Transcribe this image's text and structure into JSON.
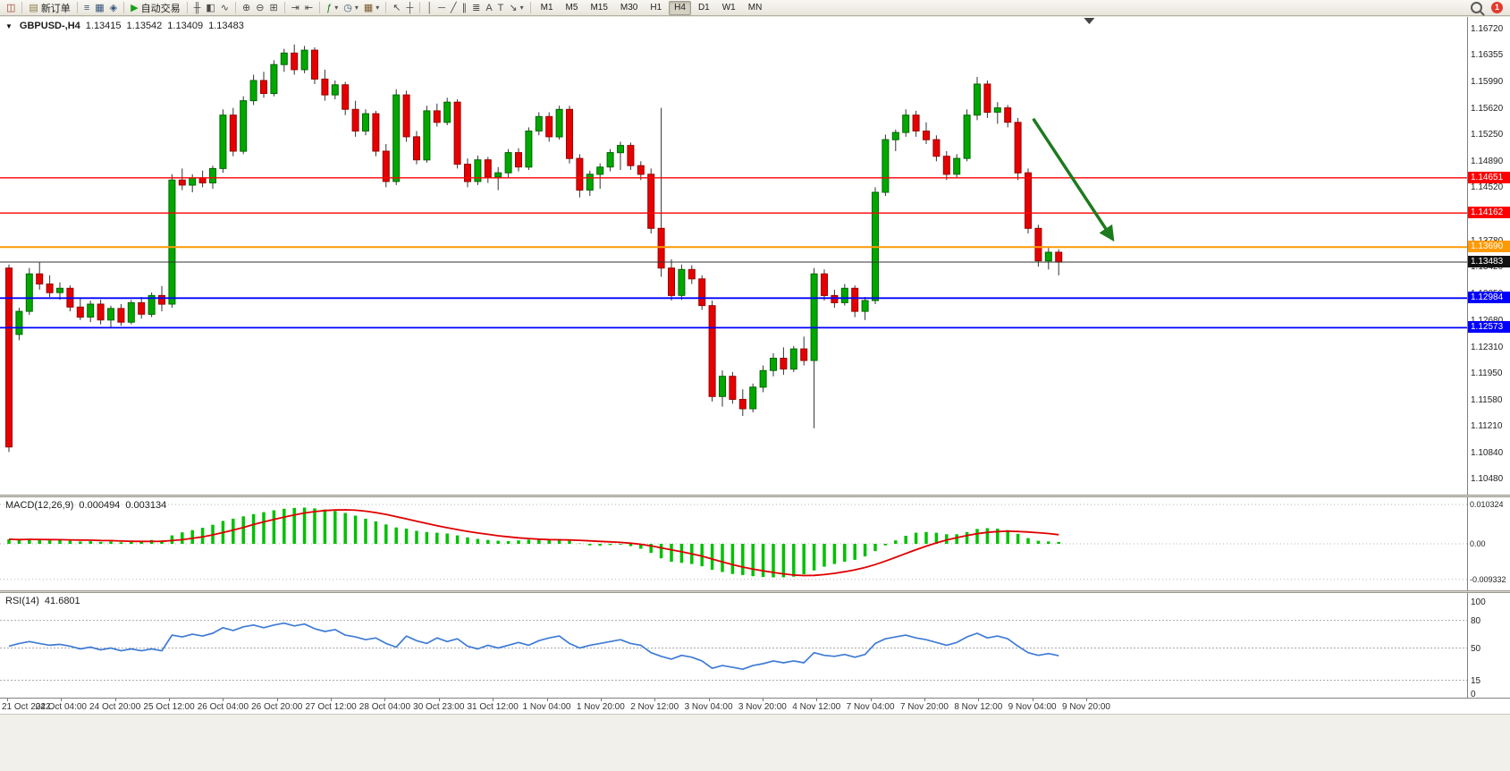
{
  "ui": {
    "symbol_caret": "▼",
    "caret_down": "▾"
  },
  "toolbar": {
    "groups": [
      {
        "items": [
          {
            "name": "new-chart-button",
            "glyph": "◫",
            "color": "#a03828"
          }
        ]
      },
      {
        "items": [
          {
            "name": "new-order-button",
            "glyph": "▤",
            "color": "#8a7a4a",
            "label": "新订单"
          }
        ]
      },
      {
        "items": [
          {
            "name": "market-watch-icon",
            "glyph": "≡",
            "color": "#33527a"
          },
          {
            "name": "data-window-icon",
            "glyph": "▦",
            "color": "#33527a"
          },
          {
            "name": "navigator-icon",
            "glyph": "◈",
            "color": "#33527a"
          }
        ]
      },
      {
        "items": [
          {
            "name": "autotrading-button",
            "glyph": "▶",
            "color": "#18a018",
            "label": "自动交易"
          }
        ]
      },
      {
        "items": [
          {
            "name": "bar-chart-icon",
            "glyph": "╫"
          },
          {
            "name": "candlestick-chart-icon",
            "glyph": "◧"
          },
          {
            "name": "line-chart-icon",
            "glyph": "∿"
          }
        ]
      },
      {
        "items": [
          {
            "name": "zoom-in-icon",
            "glyph": "⊕"
          },
          {
            "name": "zoom-out-icon",
            "glyph": "⊖"
          },
          {
            "name": "tile-windows-icon",
            "glyph": "⊞"
          }
        ]
      },
      {
        "items": [
          {
            "name": "auto-scroll-icon",
            "glyph": "⇥"
          },
          {
            "name": "chart-shift-icon",
            "glyph": "⇤"
          }
        ]
      },
      {
        "items": [
          {
            "name": "indicators-button",
            "glyph": "ƒ",
            "color": "#1a7a1a",
            "caret": true
          },
          {
            "name": "periods-button",
            "glyph": "◷",
            "color": "#33527a",
            "caret": true
          },
          {
            "name": "templates-button",
            "glyph": "▦",
            "color": "#7a5a2a",
            "caret": true
          }
        ]
      },
      {
        "items": [
          {
            "name": "cursor-icon",
            "glyph": "↖"
          },
          {
            "name": "crosshair-icon",
            "glyph": "┼"
          }
        ]
      },
      {
        "items": [
          {
            "name": "vertical-line-icon",
            "glyph": "│"
          },
          {
            "name": "horizontal-line-icon",
            "glyph": "─"
          },
          {
            "name": "trendline-icon",
            "glyph": "╱"
          },
          {
            "name": "channel-icon",
            "glyph": "∥"
          },
          {
            "name": "fibonacci-icon",
            "glyph": "≣"
          },
          {
            "name": "text-icon",
            "glyph": "A"
          },
          {
            "name": "label-icon",
            "glyph": "T"
          },
          {
            "name": "arrows-button",
            "glyph": "↘",
            "caret": true
          }
        ]
      }
    ],
    "timeframes": [
      "M1",
      "M5",
      "M15",
      "M30",
      "H1",
      "H4",
      "D1",
      "W1",
      "MN"
    ],
    "active_timeframe": "H4",
    "notification_count": "1"
  },
  "chart_data": [
    {
      "type": "candlestick",
      "symbol": "GBPUSD-,H4",
      "open": "1.13415",
      "high": "1.13542",
      "low": "1.13409",
      "close": "1.13483",
      "ylim": [
        1.1026,
        1.1688
      ],
      "yticks": [
        1.1672,
        1.16355,
        1.1599,
        1.1562,
        1.1525,
        1.1489,
        1.1452,
        1.1416,
        1.1378,
        1.1342,
        1.1305,
        1.1268,
        1.1231,
        1.1195,
        1.1158,
        1.1121,
        1.1084,
        1.1048
      ],
      "ytick_labels": [
        "1.16720",
        "1.16355",
        "1.15990",
        "1.15620",
        "1.15250",
        "1.14890",
        "1.14520",
        "1.14160",
        "1.13780",
        "1.13420",
        "1.13050",
        "1.12680",
        "1.12310",
        "1.11950",
        "1.11580",
        "1.11210",
        "1.10840",
        "1.10480"
      ],
      "xticklabels": [
        "21 Oct 2022",
        "24 Oct 04:00",
        "24 Oct 20:00",
        "25 Oct 12:00",
        "26 Oct 04:00",
        "26 Oct 20:00",
        "27 Oct 12:00",
        "28 Oct 04:00",
        "30 Oct 23:00",
        "31 Oct 12:00",
        "1 Nov 04:00",
        "1 Nov 20:00",
        "2 Nov 12:00",
        "3 Nov 04:00",
        "3 Nov 20:00",
        "4 Nov 12:00",
        "7 Nov 04:00",
        "7 Nov 20:00",
        "8 Nov 12:00",
        "9 Nov 04:00",
        "9 Nov 20:00"
      ],
      "levels": [
        {
          "label": "1.14651",
          "price": 1.14651,
          "color": "#FF0000",
          "width": 1.4
        },
        {
          "label": "1.14162",
          "price": 1.14162,
          "color": "#FF0000",
          "width": 1.4
        },
        {
          "label": "1.13690",
          "price": 1.1369,
          "color": "#FF9900",
          "width": 2
        },
        {
          "label": "1.12984",
          "price": 1.12984,
          "color": "#0000FF",
          "width": 1.8
        },
        {
          "label": "1.12573",
          "price": 1.12573,
          "color": "#0000FF",
          "width": 1.8
        }
      ],
      "bid": {
        "label": "1.13483",
        "price": 1.13483,
        "line_color": "#333333",
        "bg": "#111111"
      },
      "arrow": {
        "from": {
          "bar": 100.5,
          "price": 1.1547
        },
        "to": {
          "bar": 108.2,
          "price": 1.1382
        },
        "color": "#1E7A1E"
      },
      "shift_marker_bar": 106,
      "colors": {
        "up": "#00A800",
        "up_edge": "#006600",
        "down": "#E60000",
        "down_edge": "#990000",
        "wick": "#333333"
      },
      "ohlc": [
        [
          1.134,
          1.1345,
          1.1085,
          1.1092
        ],
        [
          1.1248,
          1.1285,
          1.124,
          1.128
        ],
        [
          1.128,
          1.134,
          1.1275,
          1.1332
        ],
        [
          1.1332,
          1.1348,
          1.131,
          1.1318
        ],
        [
          1.1318,
          1.133,
          1.13,
          1.1306
        ],
        [
          1.1306,
          1.132,
          1.1296,
          1.1312
        ],
        [
          1.1312,
          1.1316,
          1.128,
          1.1286
        ],
        [
          1.1286,
          1.1298,
          1.1268,
          1.1272
        ],
        [
          1.1272,
          1.1295,
          1.1265,
          1.129
        ],
        [
          1.129,
          1.1296,
          1.1262,
          1.1268
        ],
        [
          1.1268,
          1.1288,
          1.1258,
          1.1284
        ],
        [
          1.1284,
          1.129,
          1.126,
          1.1265
        ],
        [
          1.1265,
          1.1296,
          1.1262,
          1.1292
        ],
        [
          1.1292,
          1.13,
          1.127,
          1.1276
        ],
        [
          1.1276,
          1.1306,
          1.1272,
          1.1302
        ],
        [
          1.1302,
          1.1315,
          1.128,
          1.129
        ],
        [
          1.129,
          1.147,
          1.1285,
          1.1462
        ],
        [
          1.1462,
          1.1478,
          1.1448,
          1.1455
        ],
        [
          1.1455,
          1.147,
          1.1445,
          1.1465
        ],
        [
          1.1465,
          1.1475,
          1.1452,
          1.1458
        ],
        [
          1.1458,
          1.1482,
          1.145,
          1.1478
        ],
        [
          1.1478,
          1.156,
          1.1472,
          1.1552
        ],
        [
          1.1552,
          1.1562,
          1.1495,
          1.1502
        ],
        [
          1.1502,
          1.1578,
          1.1498,
          1.1572
        ],
        [
          1.1572,
          1.1608,
          1.1566,
          1.16
        ],
        [
          1.16,
          1.1612,
          1.1576,
          1.1582
        ],
        [
          1.1582,
          1.1628,
          1.1578,
          1.1622
        ],
        [
          1.1622,
          1.1644,
          1.1612,
          1.1638
        ],
        [
          1.1638,
          1.165,
          1.1608,
          1.1615
        ],
        [
          1.1615,
          1.1648,
          1.161,
          1.1642
        ],
        [
          1.1642,
          1.1646,
          1.1595,
          1.1602
        ],
        [
          1.1602,
          1.1615,
          1.1572,
          1.158
        ],
        [
          1.158,
          1.16,
          1.1574,
          1.1594
        ],
        [
          1.1594,
          1.1598,
          1.1552,
          1.156
        ],
        [
          1.156,
          1.1572,
          1.1522,
          1.153
        ],
        [
          1.153,
          1.156,
          1.1524,
          1.1554
        ],
        [
          1.1554,
          1.1558,
          1.1495,
          1.1502
        ],
        [
          1.1502,
          1.1512,
          1.1452,
          1.146
        ],
        [
          1.146,
          1.1588,
          1.1455,
          1.158
        ],
        [
          1.158,
          1.1586,
          1.1515,
          1.1522
        ],
        [
          1.1522,
          1.153,
          1.1484,
          1.149
        ],
        [
          1.149,
          1.1565,
          1.1486,
          1.1558
        ],
        [
          1.1558,
          1.1568,
          1.1536,
          1.1542
        ],
        [
          1.1542,
          1.1576,
          1.1538,
          1.157
        ],
        [
          1.157,
          1.1574,
          1.1478,
          1.1484
        ],
        [
          1.1484,
          1.1492,
          1.1452,
          1.146
        ],
        [
          1.146,
          1.1496,
          1.1455,
          1.149
        ],
        [
          1.149,
          1.1494,
          1.1458,
          1.1466
        ],
        [
          1.1466,
          1.148,
          1.1448,
          1.1472
        ],
        [
          1.1472,
          1.1505,
          1.1466,
          1.15
        ],
        [
          1.15,
          1.1506,
          1.1474,
          1.148
        ],
        [
          1.148,
          1.1535,
          1.1476,
          1.153
        ],
        [
          1.153,
          1.1556,
          1.1524,
          1.155
        ],
        [
          1.155,
          1.1556,
          1.1515,
          1.1522
        ],
        [
          1.1522,
          1.1565,
          1.1518,
          1.156
        ],
        [
          1.156,
          1.1565,
          1.1485,
          1.1492
        ],
        [
          1.1492,
          1.1498,
          1.1438,
          1.1448
        ],
        [
          1.1448,
          1.1475,
          1.144,
          1.147
        ],
        [
          1.147,
          1.1485,
          1.145,
          1.148
        ],
        [
          1.148,
          1.1505,
          1.1474,
          1.15
        ],
        [
          1.15,
          1.1515,
          1.1476,
          1.151
        ],
        [
          1.151,
          1.1514,
          1.1476,
          1.1482
        ],
        [
          1.1482,
          1.1488,
          1.1462,
          1.147
        ],
        [
          1.147,
          1.1478,
          1.1388,
          1.1395
        ],
        [
          1.1395,
          1.1562,
          1.1328,
          1.134
        ],
        [
          1.134,
          1.1352,
          1.1295,
          1.1302
        ],
        [
          1.1302,
          1.1345,
          1.1296,
          1.1338
        ],
        [
          1.1338,
          1.1344,
          1.1318,
          1.1325
        ],
        [
          1.1325,
          1.133,
          1.1282,
          1.1288
        ],
        [
          1.1288,
          1.1295,
          1.1155,
          1.1162
        ],
        [
          1.1162,
          1.1198,
          1.1148,
          1.119
        ],
        [
          1.119,
          1.1196,
          1.1152,
          1.1158
        ],
        [
          1.1158,
          1.1172,
          1.1135,
          1.1145
        ],
        [
          1.1145,
          1.118,
          1.114,
          1.1175
        ],
        [
          1.1175,
          1.1205,
          1.1168,
          1.1198
        ],
        [
          1.1198,
          1.1222,
          1.119,
          1.1215
        ],
        [
          1.1215,
          1.123,
          1.1192,
          1.12
        ],
        [
          1.12,
          1.1232,
          1.1196,
          1.1228
        ],
        [
          1.1228,
          1.1245,
          1.1205,
          1.1212
        ],
        [
          1.1212,
          1.134,
          1.1118,
          1.1332
        ],
        [
          1.1332,
          1.1338,
          1.1295,
          1.1302
        ],
        [
          1.1302,
          1.131,
          1.1285,
          1.1292
        ],
        [
          1.1292,
          1.1318,
          1.1288,
          1.1312
        ],
        [
          1.1312,
          1.1316,
          1.1272,
          1.128
        ],
        [
          1.128,
          1.13,
          1.1268,
          1.1295
        ],
        [
          1.1295,
          1.1452,
          1.129,
          1.1445
        ],
        [
          1.1445,
          1.1525,
          1.144,
          1.1518
        ],
        [
          1.1518,
          1.1532,
          1.1502,
          1.1528
        ],
        [
          1.1528,
          1.156,
          1.1522,
          1.1552
        ],
        [
          1.1552,
          1.1558,
          1.1522,
          1.153
        ],
        [
          1.153,
          1.1542,
          1.1512,
          1.1518
        ],
        [
          1.1518,
          1.1524,
          1.1488,
          1.1495
        ],
        [
          1.1495,
          1.1502,
          1.1462,
          1.147
        ],
        [
          1.147,
          1.1498,
          1.1465,
          1.1492
        ],
        [
          1.1492,
          1.156,
          1.1488,
          1.1552
        ],
        [
          1.1552,
          1.1605,
          1.1545,
          1.1595
        ],
        [
          1.1595,
          1.16,
          1.1548,
          1.1556
        ],
        [
          1.1556,
          1.157,
          1.154,
          1.1562
        ],
        [
          1.1562,
          1.1566,
          1.1535,
          1.1542
        ],
        [
          1.1542,
          1.1548,
          1.1462,
          1.1472
        ],
        [
          1.1472,
          1.1478,
          1.1388,
          1.1395
        ],
        [
          1.1395,
          1.14,
          1.1342,
          1.135
        ],
        [
          1.135,
          1.1368,
          1.1338,
          1.1362
        ],
        [
          1.1362,
          1.1366,
          1.133,
          1.13483
        ]
      ]
    },
    {
      "type": "bar",
      "name": "MACD(12,26,9)",
      "value_macd": "0.000494",
      "value_signal": "0.003134",
      "signal_period": 9,
      "yticks": [
        0.010324,
        0,
        -0.009332
      ],
      "ytick_labels": [
        "0.010324",
        "0.00",
        "-0.009332"
      ],
      "colors": {
        "hist": "#00C000",
        "signal": "#E00000"
      },
      "values": [
        0.0012,
        0.001,
        0.0013,
        0.0011,
        0.0009,
        0.001,
        0.0008,
        0.0006,
        0.0007,
        0.0005,
        0.0006,
        0.0004,
        0.0005,
        0.0007,
        0.001,
        0.0009,
        0.0022,
        0.003,
        0.0036,
        0.0042,
        0.005,
        0.006,
        0.0066,
        0.0072,
        0.0078,
        0.0083,
        0.0088,
        0.0092,
        0.0094,
        0.0095,
        0.0093,
        0.009,
        0.0086,
        0.0081,
        0.0074,
        0.0066,
        0.0059,
        0.0051,
        0.0043,
        0.004,
        0.0034,
        0.0031,
        0.0029,
        0.0027,
        0.0022,
        0.0017,
        0.0013,
        0.001,
        0.0008,
        0.0007,
        0.0009,
        0.0011,
        0.0013,
        0.0012,
        0.0013,
        0.0008,
        0.0001,
        -0.0004,
        -0.0005,
        -0.0003,
        -0.0002,
        -0.0006,
        -0.0013,
        -0.0024,
        -0.0038,
        -0.0047,
        -0.005,
        -0.0053,
        -0.0059,
        -0.0068,
        -0.0074,
        -0.0079,
        -0.0082,
        -0.0085,
        -0.0087,
        -0.0088,
        -0.0088,
        -0.0086,
        -0.008,
        -0.007,
        -0.006,
        -0.0053,
        -0.0047,
        -0.0042,
        -0.0033,
        -0.0019,
        -0.0004,
        0.0009,
        0.0021,
        0.0029,
        0.0031,
        0.0029,
        0.0025,
        0.0025,
        0.0031,
        0.0039,
        0.0041,
        0.004,
        0.0036,
        0.0026,
        0.0015,
        0.0008,
        0.0006,
        0.000494
      ]
    },
    {
      "type": "line",
      "name": "RSI(14)",
      "value": "41.6801",
      "ylim": [
        0,
        100
      ],
      "levels": [
        80,
        50,
        15
      ],
      "yticks": [
        100,
        80,
        50,
        15,
        0
      ],
      "ytick_labels": [
        "100",
        "80",
        "50",
        "15",
        "0"
      ],
      "color": "#3E7BD6",
      "values": [
        52,
        55,
        57,
        55,
        53,
        54,
        52,
        49,
        51,
        48,
        50,
        47,
        49,
        47,
        49,
        47,
        64,
        62,
        65,
        63,
        66,
        72,
        69,
        73,
        75,
        72,
        75,
        77,
        74,
        76,
        71,
        68,
        70,
        64,
        62,
        59,
        61,
        55,
        51,
        63,
        58,
        55,
        61,
        57,
        60,
        52,
        49,
        53,
        50,
        53,
        56,
        53,
        58,
        61,
        63,
        55,
        50,
        53,
        55,
        57,
        59,
        55,
        53,
        45,
        41,
        38,
        42,
        40,
        36,
        28,
        31,
        29,
        27,
        31,
        33,
        36,
        34,
        36,
        34,
        45,
        42,
        41,
        43,
        40,
        43,
        55,
        60,
        62,
        64,
        61,
        59,
        56,
        53,
        56,
        62,
        66,
        61,
        63,
        60,
        52,
        45,
        42,
        44,
        41.6801
      ]
    }
  ]
}
